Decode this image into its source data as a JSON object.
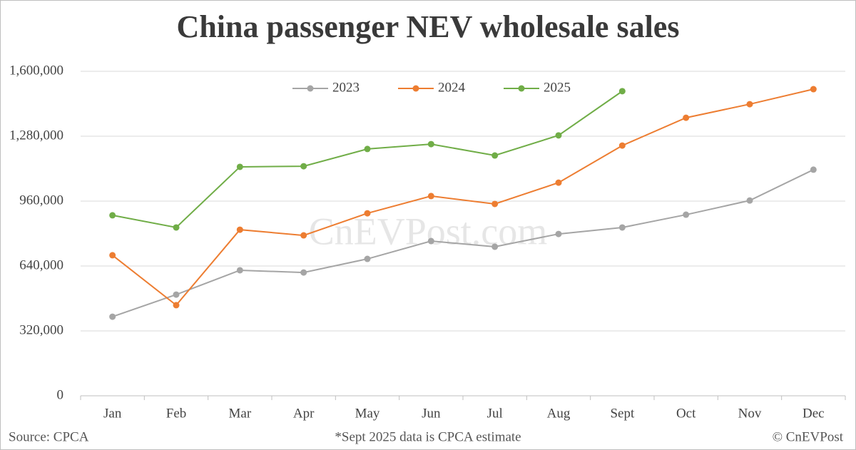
{
  "chart_data": {
    "type": "line",
    "title": "China passenger NEV wholesale sales",
    "watermark": "CnEVPost.com",
    "source": "Source: CPCA",
    "note": "*Sept 2025 data is CPCA estimate",
    "credit": "© CnEVPost",
    "categories": [
      "Jan",
      "Feb",
      "Mar",
      "Apr",
      "May",
      "Jun",
      "Jul",
      "Aug",
      "Sept",
      "Oct",
      "Nov",
      "Dec"
    ],
    "series": [
      {
        "name": "2023",
        "color": "#a5a5a5",
        "values": [
          390000,
          499000,
          619000,
          608000,
          675000,
          763000,
          735000,
          798000,
          830000,
          893000,
          963000,
          1115000
        ]
      },
      {
        "name": "2024",
        "color": "#ed7d31",
        "values": [
          693000,
          447000,
          819000,
          791000,
          900000,
          985000,
          946000,
          1051000,
          1234000,
          1371000,
          1438000,
          1512000
        ]
      },
      {
        "name": "2025",
        "color": "#70ad47",
        "values": [
          890000,
          830000,
          1129000,
          1132000,
          1217000,
          1241000,
          1185000,
          1284000,
          1502000,
          null,
          null,
          null
        ]
      }
    ],
    "ylim": [
      0,
      1600000
    ],
    "yticks": [
      0,
      {
        "value": 320000,
        "label": "320,000"
      },
      {
        "value": 640000,
        "label": "640,000"
      },
      {
        "value": 960000,
        "label": "960,000"
      },
      {
        "value": 1280000,
        "label": "1,280,000"
      },
      {
        "value": 1600000,
        "label": "1,600,000"
      }
    ],
    "grid": true,
    "legend": "top"
  }
}
